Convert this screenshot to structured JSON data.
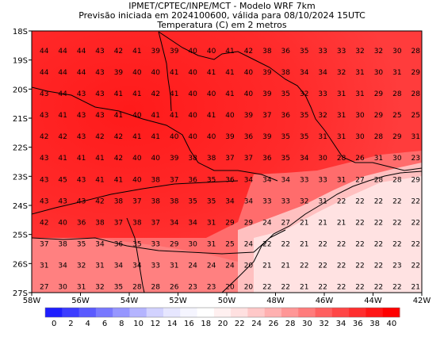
{
  "header": {
    "line1": "IPMET/CPTEC/INPE/MCT - Modelo WRF 7km",
    "line2": "Previsão iniciada em 2024100600, válida para 08/10/2024 15UTC",
    "line3": "Temperatura (C) em 2 metros"
  },
  "map": {
    "lat_labels": [
      "18S",
      "19S",
      "20S",
      "21S",
      "22S",
      "23S",
      "24S",
      "25S",
      "26S",
      "27S"
    ],
    "lon_labels": [
      "58W",
      "56W",
      "54W",
      "52W",
      "50W",
      "48W",
      "46W",
      "44W",
      "42W"
    ],
    "grid_values": [
      [
        "44",
        "44",
        "44",
        "43",
        "42",
        "41",
        "39",
        "39",
        "40",
        "40",
        "41",
        "42",
        "38",
        "36",
        "35",
        "33",
        "33",
        "32",
        "32",
        "30",
        "28"
      ],
      [
        "44",
        "44",
        "44",
        "43",
        "39",
        "40",
        "40",
        "41",
        "40",
        "41",
        "41",
        "40",
        "39",
        "38",
        "34",
        "34",
        "32",
        "31",
        "30",
        "31",
        "29"
      ],
      [
        "43",
        "44",
        "43",
        "43",
        "41",
        "41",
        "42",
        "41",
        "40",
        "40",
        "41",
        "40",
        "39",
        "35",
        "32",
        "33",
        "31",
        "31",
        "29",
        "28",
        "28"
      ],
      [
        "43",
        "41",
        "43",
        "43",
        "41",
        "40",
        "41",
        "41",
        "40",
        "41",
        "40",
        "39",
        "37",
        "36",
        "35",
        "32",
        "31",
        "30",
        "29",
        "25",
        "25"
      ],
      [
        "42",
        "42",
        "43",
        "42",
        "42",
        "41",
        "41",
        "40",
        "40",
        "40",
        "39",
        "36",
        "39",
        "35",
        "35",
        "31",
        "31",
        "30",
        "28",
        "29",
        "31"
      ],
      [
        "43",
        "41",
        "41",
        "41",
        "42",
        "40",
        "40",
        "39",
        "38",
        "38",
        "37",
        "37",
        "36",
        "35",
        "34",
        "30",
        "28",
        "26",
        "31",
        "30",
        "23"
      ],
      [
        "43",
        "45",
        "43",
        "41",
        "41",
        "40",
        "38",
        "37",
        "36",
        "35",
        "36",
        "34",
        "34",
        "34",
        "33",
        "33",
        "31",
        "27",
        "28",
        "28",
        "29"
      ],
      [
        "43",
        "43",
        "43",
        "42",
        "38",
        "37",
        "38",
        "38",
        "35",
        "35",
        "34",
        "34",
        "33",
        "33",
        "32",
        "31",
        "22",
        "22",
        "22",
        "22",
        "22"
      ],
      [
        "42",
        "40",
        "36",
        "38",
        "37",
        "38",
        "37",
        "34",
        "34",
        "31",
        "29",
        "29",
        "24",
        "27",
        "21",
        "21",
        "21",
        "22",
        "22",
        "22",
        "22"
      ],
      [
        "37",
        "38",
        "35",
        "34",
        "36",
        "35",
        "33",
        "29",
        "30",
        "31",
        "25",
        "24",
        "22",
        "22",
        "21",
        "22",
        "22",
        "22",
        "22",
        "22",
        "22"
      ],
      [
        "31",
        "34",
        "32",
        "31",
        "34",
        "34",
        "33",
        "31",
        "24",
        "24",
        "24",
        "20",
        "21",
        "21",
        "22",
        "22",
        "22",
        "22",
        "22",
        "23",
        "22"
      ],
      [
        "27",
        "30",
        "31",
        "32",
        "35",
        "28",
        "28",
        "26",
        "23",
        "23",
        "20",
        "20",
        "22",
        "22",
        "21",
        "22",
        "22",
        "22",
        "22",
        "22",
        "21"
      ]
    ]
  },
  "colorbar": {
    "labels": [
      "0",
      "2",
      "4",
      "6",
      "8",
      "10",
      "12",
      "14",
      "16",
      "18",
      "20",
      "22",
      "24",
      "26",
      "28",
      "30",
      "32",
      "34",
      "36",
      "38",
      "40"
    ],
    "colors": [
      "#1e1eff",
      "#3c3cff",
      "#5a5aff",
      "#7878ff",
      "#9696ff",
      "#b4b4ff",
      "#d2d2ff",
      "#e6e6ff",
      "#f5f5ff",
      "#ffffff",
      "#fff0f0",
      "#ffe0e0",
      "#ffc8c8",
      "#ffb0b0",
      "#ff9696",
      "#ff7c7c",
      "#ff6060",
      "#ff4646",
      "#ff2e2e",
      "#ff1616",
      "#ff0000"
    ]
  }
}
